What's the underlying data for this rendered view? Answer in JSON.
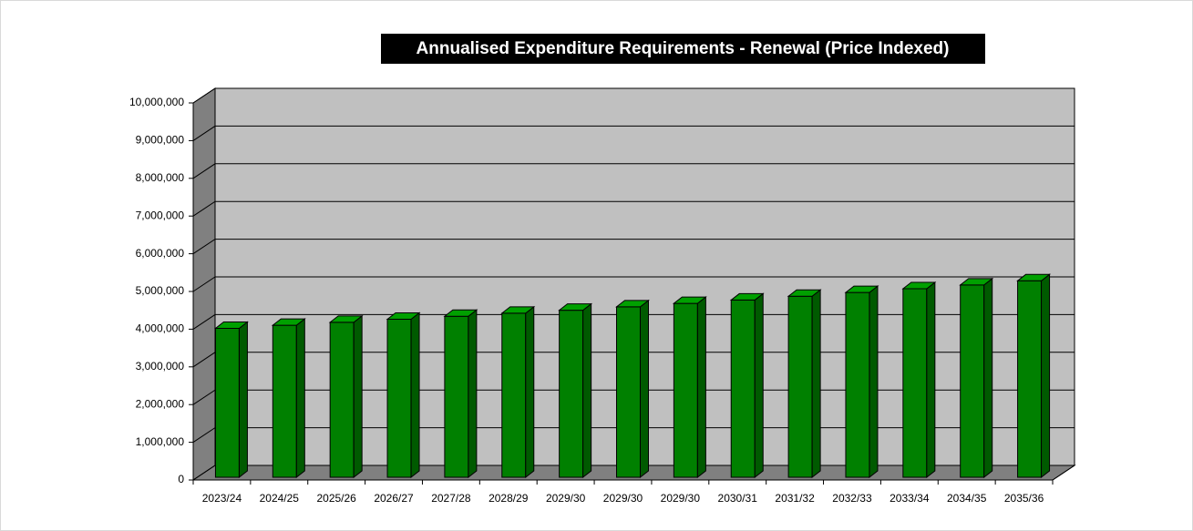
{
  "chart_data": {
    "type": "bar3d",
    "title": "Annualised Expenditure Requirements - Renewal (Price Indexed)",
    "categories": [
      "2023/24",
      "2024/25",
      "2025/26",
      "2026/27",
      "2027/28",
      "2028/29",
      "2029/30",
      "2029/30",
      "2029/30",
      "2030/31",
      "2031/32",
      "2032/33",
      "2033/34",
      "2034/35",
      "2035/36"
    ],
    "values": [
      3950000,
      4030000,
      4110000,
      4190000,
      4270000,
      4350000,
      4430000,
      4520000,
      4610000,
      4700000,
      4800000,
      4900000,
      5000000,
      5100000,
      5210000
    ],
    "color": "#008000",
    "ylim": [
      0,
      10000000
    ],
    "yticks": [
      0,
      {
        "value": 1000000,
        "label": "1,000,000"
      },
      {
        "value": 2000000,
        "label": "2,000,000"
      },
      {
        "value": 3000000,
        "label": "3,000,000"
      },
      {
        "value": 4000000,
        "label": "4,000,000"
      },
      {
        "value": 5000000,
        "label": "5,000,000"
      },
      {
        "value": 6000000,
        "label": "6,000,000"
      },
      {
        "value": 7000000,
        "label": "7,000,000"
      },
      {
        "value": 8000000,
        "label": "8,000,000"
      },
      {
        "value": 9000000,
        "label": "9,000,000"
      },
      {
        "value": 10000000,
        "label": "10,000,000"
      }
    ],
    "grid": true
  }
}
